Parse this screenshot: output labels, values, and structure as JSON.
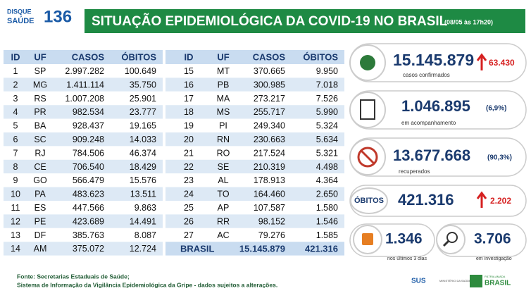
{
  "header": {
    "logo_top": "DISQUE",
    "logo_bottom": "SAÚDE",
    "logo_number": "136",
    "title": "SITUAÇÃO EPIDEMIOLÓGICA DA COVID-19 NO BRASIL",
    "date": "(08/05 às 17h20)"
  },
  "tables": [
    {
      "header": [
        "ID",
        "UF",
        "CASOS",
        "ÓBITOS"
      ],
      "rows": [
        [
          "1",
          "SP",
          "2.997.282",
          "100.649"
        ],
        [
          "2",
          "MG",
          "1.411.114",
          "35.750"
        ],
        [
          "3",
          "RS",
          "1.007.208",
          "25.901"
        ],
        [
          "4",
          "PR",
          "982.534",
          "23.777"
        ],
        [
          "5",
          "BA",
          "928.437",
          "19.165"
        ],
        [
          "6",
          "SC",
          "909.248",
          "14.033"
        ],
        [
          "7",
          "RJ",
          "784.506",
          "46.374"
        ],
        [
          "8",
          "CE",
          "706.540",
          "18.429"
        ],
        [
          "9",
          "GO",
          "566.479",
          "15.576"
        ],
        [
          "10",
          "PA",
          "483.623",
          "13.511"
        ],
        [
          "11",
          "ES",
          "447.566",
          "9.863"
        ],
        [
          "12",
          "PE",
          "423.689",
          "14.491"
        ],
        [
          "13",
          "DF",
          "385.763",
          "8.087"
        ],
        [
          "14",
          "AM",
          "375.072",
          "12.724"
        ]
      ]
    },
    {
      "header": [
        "ID",
        "UF",
        "CASOS",
        "ÓBITOS"
      ],
      "rows": [
        [
          "15",
          "MT",
          "370.665",
          "9.950"
        ],
        [
          "16",
          "PB",
          "300.985",
          "7.018"
        ],
        [
          "17",
          "MA",
          "273.217",
          "7.526"
        ],
        [
          "18",
          "MS",
          "255.717",
          "5.990"
        ],
        [
          "19",
          "PI",
          "249.340",
          "5.324"
        ],
        [
          "20",
          "RN",
          "230.663",
          "5.634"
        ],
        [
          "21",
          "RO",
          "217.524",
          "5.321"
        ],
        [
          "22",
          "SE",
          "210.319",
          "4.498"
        ],
        [
          "23",
          "AL",
          "178.913",
          "4.364"
        ],
        [
          "24",
          "TO",
          "164.460",
          "2.650"
        ],
        [
          "25",
          "AP",
          "107.587",
          "1.580"
        ],
        [
          "26",
          "RR",
          "98.152",
          "1.546"
        ],
        [
          "27",
          "AC",
          "79.276",
          "1.585"
        ]
      ],
      "total": [
        "BRASIL",
        "15.145.879",
        "421.316"
      ]
    }
  ],
  "cards": {
    "confirmed": {
      "value": "15.145.879",
      "increase": "63.430",
      "label": "casos confirmados"
    },
    "monitoring": {
      "value": "1.046.895",
      "percent": "(6,9%)",
      "label": "em acompanhamento"
    },
    "recovered": {
      "value": "13.677.668",
      "percent": "(90,3%)",
      "label": "recuperados"
    },
    "deaths": {
      "badge": "ÓBITOS",
      "value": "421.316",
      "increase": "2.202"
    },
    "recent": {
      "value": "1.346",
      "label": "nos últimos 3 dias"
    },
    "investigation": {
      "value": "3.706",
      "label": "em investigação"
    }
  },
  "footer": {
    "source1": "Fonte: Secretarias Estaduais de Saúde;",
    "source2": "Sistema de Informação da Vigilância Epidemiológica da Gripe - dados sujeitos a alterações.",
    "logo_sus": "SUS",
    "logo_ministry": "MINISTÉRIO DA SAÚDE",
    "logo_brasil": "BRASIL",
    "logo_patria": "PÁTRIA AMADA"
  }
}
